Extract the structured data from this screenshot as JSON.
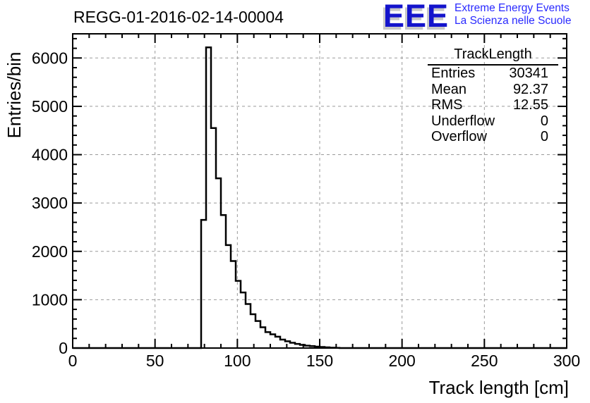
{
  "title": "REGG-01-2016-02-14-00004",
  "logo": {
    "acronym": "EEE",
    "line1": "Extreme Energy Events",
    "line2": "La Scienza nelle Scuole",
    "acronym_color": "#1414cc",
    "text_color": "#2a2aff",
    "shadow_color": "#c8c8c8"
  },
  "stats": {
    "title": "TrackLength",
    "rows": [
      {
        "label": "Entries",
        "value": "30341"
      },
      {
        "label": "Mean",
        "value": "92.37"
      },
      {
        "label": "RMS",
        "value": "12.55"
      },
      {
        "label": "Underflow",
        "value": "0"
      },
      {
        "label": "Overflow",
        "value": "0"
      }
    ]
  },
  "chart_data": {
    "type": "bar",
    "subtype": "step-histogram",
    "title": "REGG-01-2016-02-14-00004",
    "xlabel": "Track length [cm]",
    "ylabel": "Entries/bin",
    "xlim": [
      0,
      300
    ],
    "ylim": [
      0,
      6500
    ],
    "x_major_ticks": [
      0,
      50,
      100,
      150,
      200,
      250,
      300
    ],
    "x_minor_step": 10,
    "y_major_ticks": [
      0,
      1000,
      2000,
      3000,
      4000,
      5000,
      6000
    ],
    "y_minor_step": 200,
    "y_minor_max": 6400,
    "grid": true,
    "grid_color": "#9a9a9a",
    "line_color": "#000000",
    "bin_width": 3,
    "bin_start": 78,
    "bin_counts": [
      2650,
      6220,
      4550,
      3510,
      2750,
      2130,
      1800,
      1390,
      1150,
      910,
      700,
      560,
      430,
      330,
      285,
      235,
      175,
      140,
      110,
      85,
      65,
      50,
      40,
      30,
      22,
      15,
      8,
      4
    ]
  }
}
